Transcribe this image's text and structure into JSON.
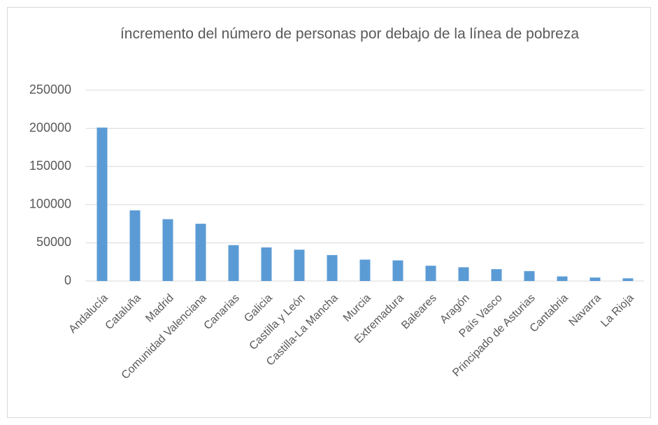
{
  "chart_data": {
    "type": "bar",
    "title": "íncremento del número de personas por debajo de la línea de pobreza",
    "categories": [
      "Andalucía",
      "Cataluña",
      "Madrid",
      "Comunidad Valenciana",
      "Canarias",
      "Galicia",
      "Castilla y León",
      "Castilla-La Mancha",
      "Murcia",
      "Extremadura",
      "Baleares",
      "Aragón",
      "País Vasco",
      "Principado de Asturias",
      "Cantabria",
      "Navarra",
      "La Rioja"
    ],
    "values": [
      201000,
      92500,
      81000,
      75000,
      47000,
      44000,
      41000,
      34000,
      28000,
      27000,
      20000,
      18000,
      15500,
      13000,
      6000,
      4500,
      3500
    ],
    "color": "#5b9bd5",
    "ylim": [
      0,
      250000
    ],
    "yticks": [
      0,
      50000,
      100000,
      150000,
      200000,
      250000
    ],
    "grid": true
  }
}
